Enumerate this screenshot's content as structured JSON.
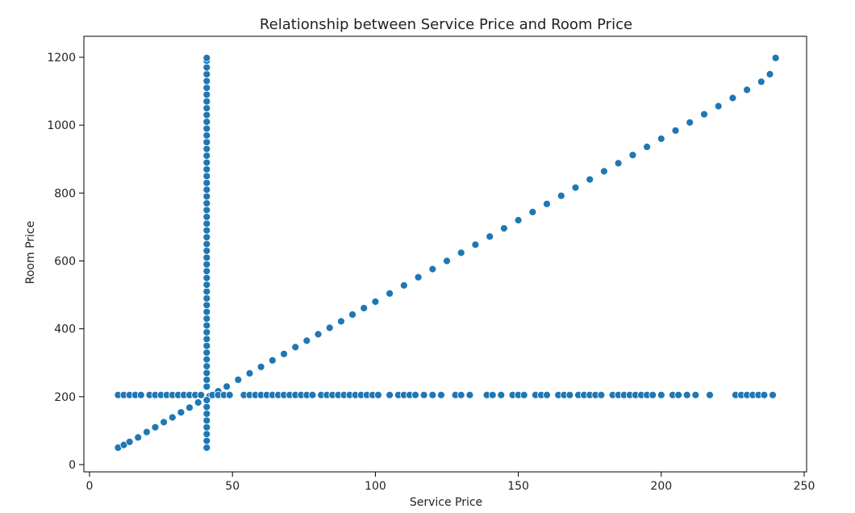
{
  "chart_data": {
    "type": "scatter",
    "title": "Relationship between Service Price and Room Price",
    "xlabel": "Service Price",
    "ylabel": "Room Price",
    "xlim": [
      0,
      250
    ],
    "ylim": [
      0,
      1200
    ],
    "xticks": [
      0,
      50,
      100,
      150,
      200,
      250
    ],
    "yticks": [
      0,
      200,
      400,
      600,
      800,
      1000,
      1200
    ],
    "grid": false,
    "series": [
      {
        "color": "#1f77b4",
        "points": [
          [
            10,
            50
          ],
          [
            12,
            58
          ],
          [
            14,
            67
          ],
          [
            17,
            80
          ],
          [
            20,
            96
          ],
          [
            23,
            110
          ],
          [
            26,
            125
          ],
          [
            29,
            139
          ],
          [
            32,
            154
          ],
          [
            35,
            168
          ],
          [
            38,
            183
          ],
          [
            42,
            202
          ],
          [
            45,
            216
          ],
          [
            48,
            230
          ],
          [
            52,
            250
          ],
          [
            56,
            269
          ],
          [
            60,
            288
          ],
          [
            64,
            307
          ],
          [
            68,
            326
          ],
          [
            72,
            346
          ],
          [
            76,
            365
          ],
          [
            80,
            384
          ],
          [
            84,
            403
          ],
          [
            88,
            422
          ],
          [
            92,
            442
          ],
          [
            96,
            461
          ],
          [
            100,
            480
          ],
          [
            105,
            504
          ],
          [
            110,
            528
          ],
          [
            115,
            552
          ],
          [
            120,
            576
          ],
          [
            125,
            600
          ],
          [
            130,
            624
          ],
          [
            135,
            648
          ],
          [
            140,
            672
          ],
          [
            145,
            696
          ],
          [
            150,
            720
          ],
          [
            155,
            744
          ],
          [
            160,
            768
          ],
          [
            165,
            792
          ],
          [
            170,
            816
          ],
          [
            175,
            840
          ],
          [
            180,
            864
          ],
          [
            185,
            888
          ],
          [
            190,
            912
          ],
          [
            195,
            936
          ],
          [
            200,
            960
          ],
          [
            205,
            984
          ],
          [
            210,
            1008
          ],
          [
            215,
            1032
          ],
          [
            220,
            1056
          ],
          [
            225,
            1080
          ],
          [
            230,
            1104
          ],
          [
            235,
            1128
          ],
          [
            238,
            1150
          ],
          [
            240,
            1198
          ],
          [
            41,
            50
          ],
          [
            41,
            70
          ],
          [
            41,
            90
          ],
          [
            41,
            110
          ],
          [
            41,
            130
          ],
          [
            41,
            150
          ],
          [
            41,
            170
          ],
          [
            41,
            190
          ],
          [
            41,
            230
          ],
          [
            41,
            250
          ],
          [
            41,
            270
          ],
          [
            41,
            290
          ],
          [
            41,
            310
          ],
          [
            41,
            330
          ],
          [
            41,
            350
          ],
          [
            41,
            370
          ],
          [
            41,
            390
          ],
          [
            41,
            410
          ],
          [
            41,
            430
          ],
          [
            41,
            450
          ],
          [
            41,
            470
          ],
          [
            41,
            490
          ],
          [
            41,
            510
          ],
          [
            41,
            530
          ],
          [
            41,
            550
          ],
          [
            41,
            570
          ],
          [
            41,
            590
          ],
          [
            41,
            610
          ],
          [
            41,
            630
          ],
          [
            41,
            650
          ],
          [
            41,
            670
          ],
          [
            41,
            690
          ],
          [
            41,
            710
          ],
          [
            41,
            730
          ],
          [
            41,
            750
          ],
          [
            41,
            770
          ],
          [
            41,
            790
          ],
          [
            41,
            810
          ],
          [
            41,
            830
          ],
          [
            41,
            850
          ],
          [
            41,
            870
          ],
          [
            41,
            890
          ],
          [
            41,
            910
          ],
          [
            41,
            930
          ],
          [
            41,
            950
          ],
          [
            41,
            970
          ],
          [
            41,
            990
          ],
          [
            41,
            1010
          ],
          [
            41,
            1030
          ],
          [
            41,
            1050
          ],
          [
            41,
            1070
          ],
          [
            41,
            1090
          ],
          [
            41,
            1110
          ],
          [
            41,
            1130
          ],
          [
            41,
            1150
          ],
          [
            41,
            1170
          ],
          [
            41,
            1190
          ],
          [
            41,
            1198
          ],
          [
            10,
            205
          ],
          [
            12,
            205
          ],
          [
            14,
            205
          ],
          [
            16,
            205
          ],
          [
            18,
            205
          ],
          [
            21,
            205
          ],
          [
            23,
            205
          ],
          [
            25,
            205
          ],
          [
            27,
            205
          ],
          [
            29,
            205
          ],
          [
            31,
            205
          ],
          [
            33,
            205
          ],
          [
            35,
            205
          ],
          [
            37,
            205
          ],
          [
            39,
            205
          ],
          [
            43,
            205
          ],
          [
            45,
            205
          ],
          [
            47,
            205
          ],
          [
            49,
            205
          ],
          [
            54,
            205
          ],
          [
            56,
            205
          ],
          [
            58,
            205
          ],
          [
            60,
            205
          ],
          [
            62,
            205
          ],
          [
            64,
            205
          ],
          [
            66,
            205
          ],
          [
            68,
            205
          ],
          [
            70,
            205
          ],
          [
            72,
            205
          ],
          [
            74,
            205
          ],
          [
            76,
            205
          ],
          [
            78,
            205
          ],
          [
            81,
            205
          ],
          [
            83,
            205
          ],
          [
            85,
            205
          ],
          [
            87,
            205
          ],
          [
            89,
            205
          ],
          [
            91,
            205
          ],
          [
            93,
            205
          ],
          [
            95,
            205
          ],
          [
            97,
            205
          ],
          [
            99,
            205
          ],
          [
            101,
            205
          ],
          [
            105,
            205
          ],
          [
            108,
            205
          ],
          [
            110,
            205
          ],
          [
            112,
            205
          ],
          [
            114,
            205
          ],
          [
            117,
            205
          ],
          [
            120,
            205
          ],
          [
            123,
            205
          ],
          [
            128,
            205
          ],
          [
            130,
            205
          ],
          [
            133,
            205
          ],
          [
            139,
            205
          ],
          [
            141,
            205
          ],
          [
            144,
            205
          ],
          [
            148,
            205
          ],
          [
            150,
            205
          ],
          [
            152,
            205
          ],
          [
            156,
            205
          ],
          [
            158,
            205
          ],
          [
            160,
            205
          ],
          [
            164,
            205
          ],
          [
            166,
            205
          ],
          [
            168,
            205
          ],
          [
            171,
            205
          ],
          [
            173,
            205
          ],
          [
            175,
            205
          ],
          [
            177,
            205
          ],
          [
            179,
            205
          ],
          [
            183,
            205
          ],
          [
            185,
            205
          ],
          [
            187,
            205
          ],
          [
            189,
            205
          ],
          [
            191,
            205
          ],
          [
            193,
            205
          ],
          [
            195,
            205
          ],
          [
            197,
            205
          ],
          [
            200,
            205
          ],
          [
            204,
            205
          ],
          [
            206,
            205
          ],
          [
            209,
            205
          ],
          [
            212,
            205
          ],
          [
            217,
            205
          ],
          [
            226,
            205
          ],
          [
            228,
            205
          ],
          [
            230,
            205
          ],
          [
            232,
            205
          ],
          [
            234,
            205
          ],
          [
            236,
            205
          ],
          [
            239,
            205
          ]
        ]
      }
    ]
  }
}
